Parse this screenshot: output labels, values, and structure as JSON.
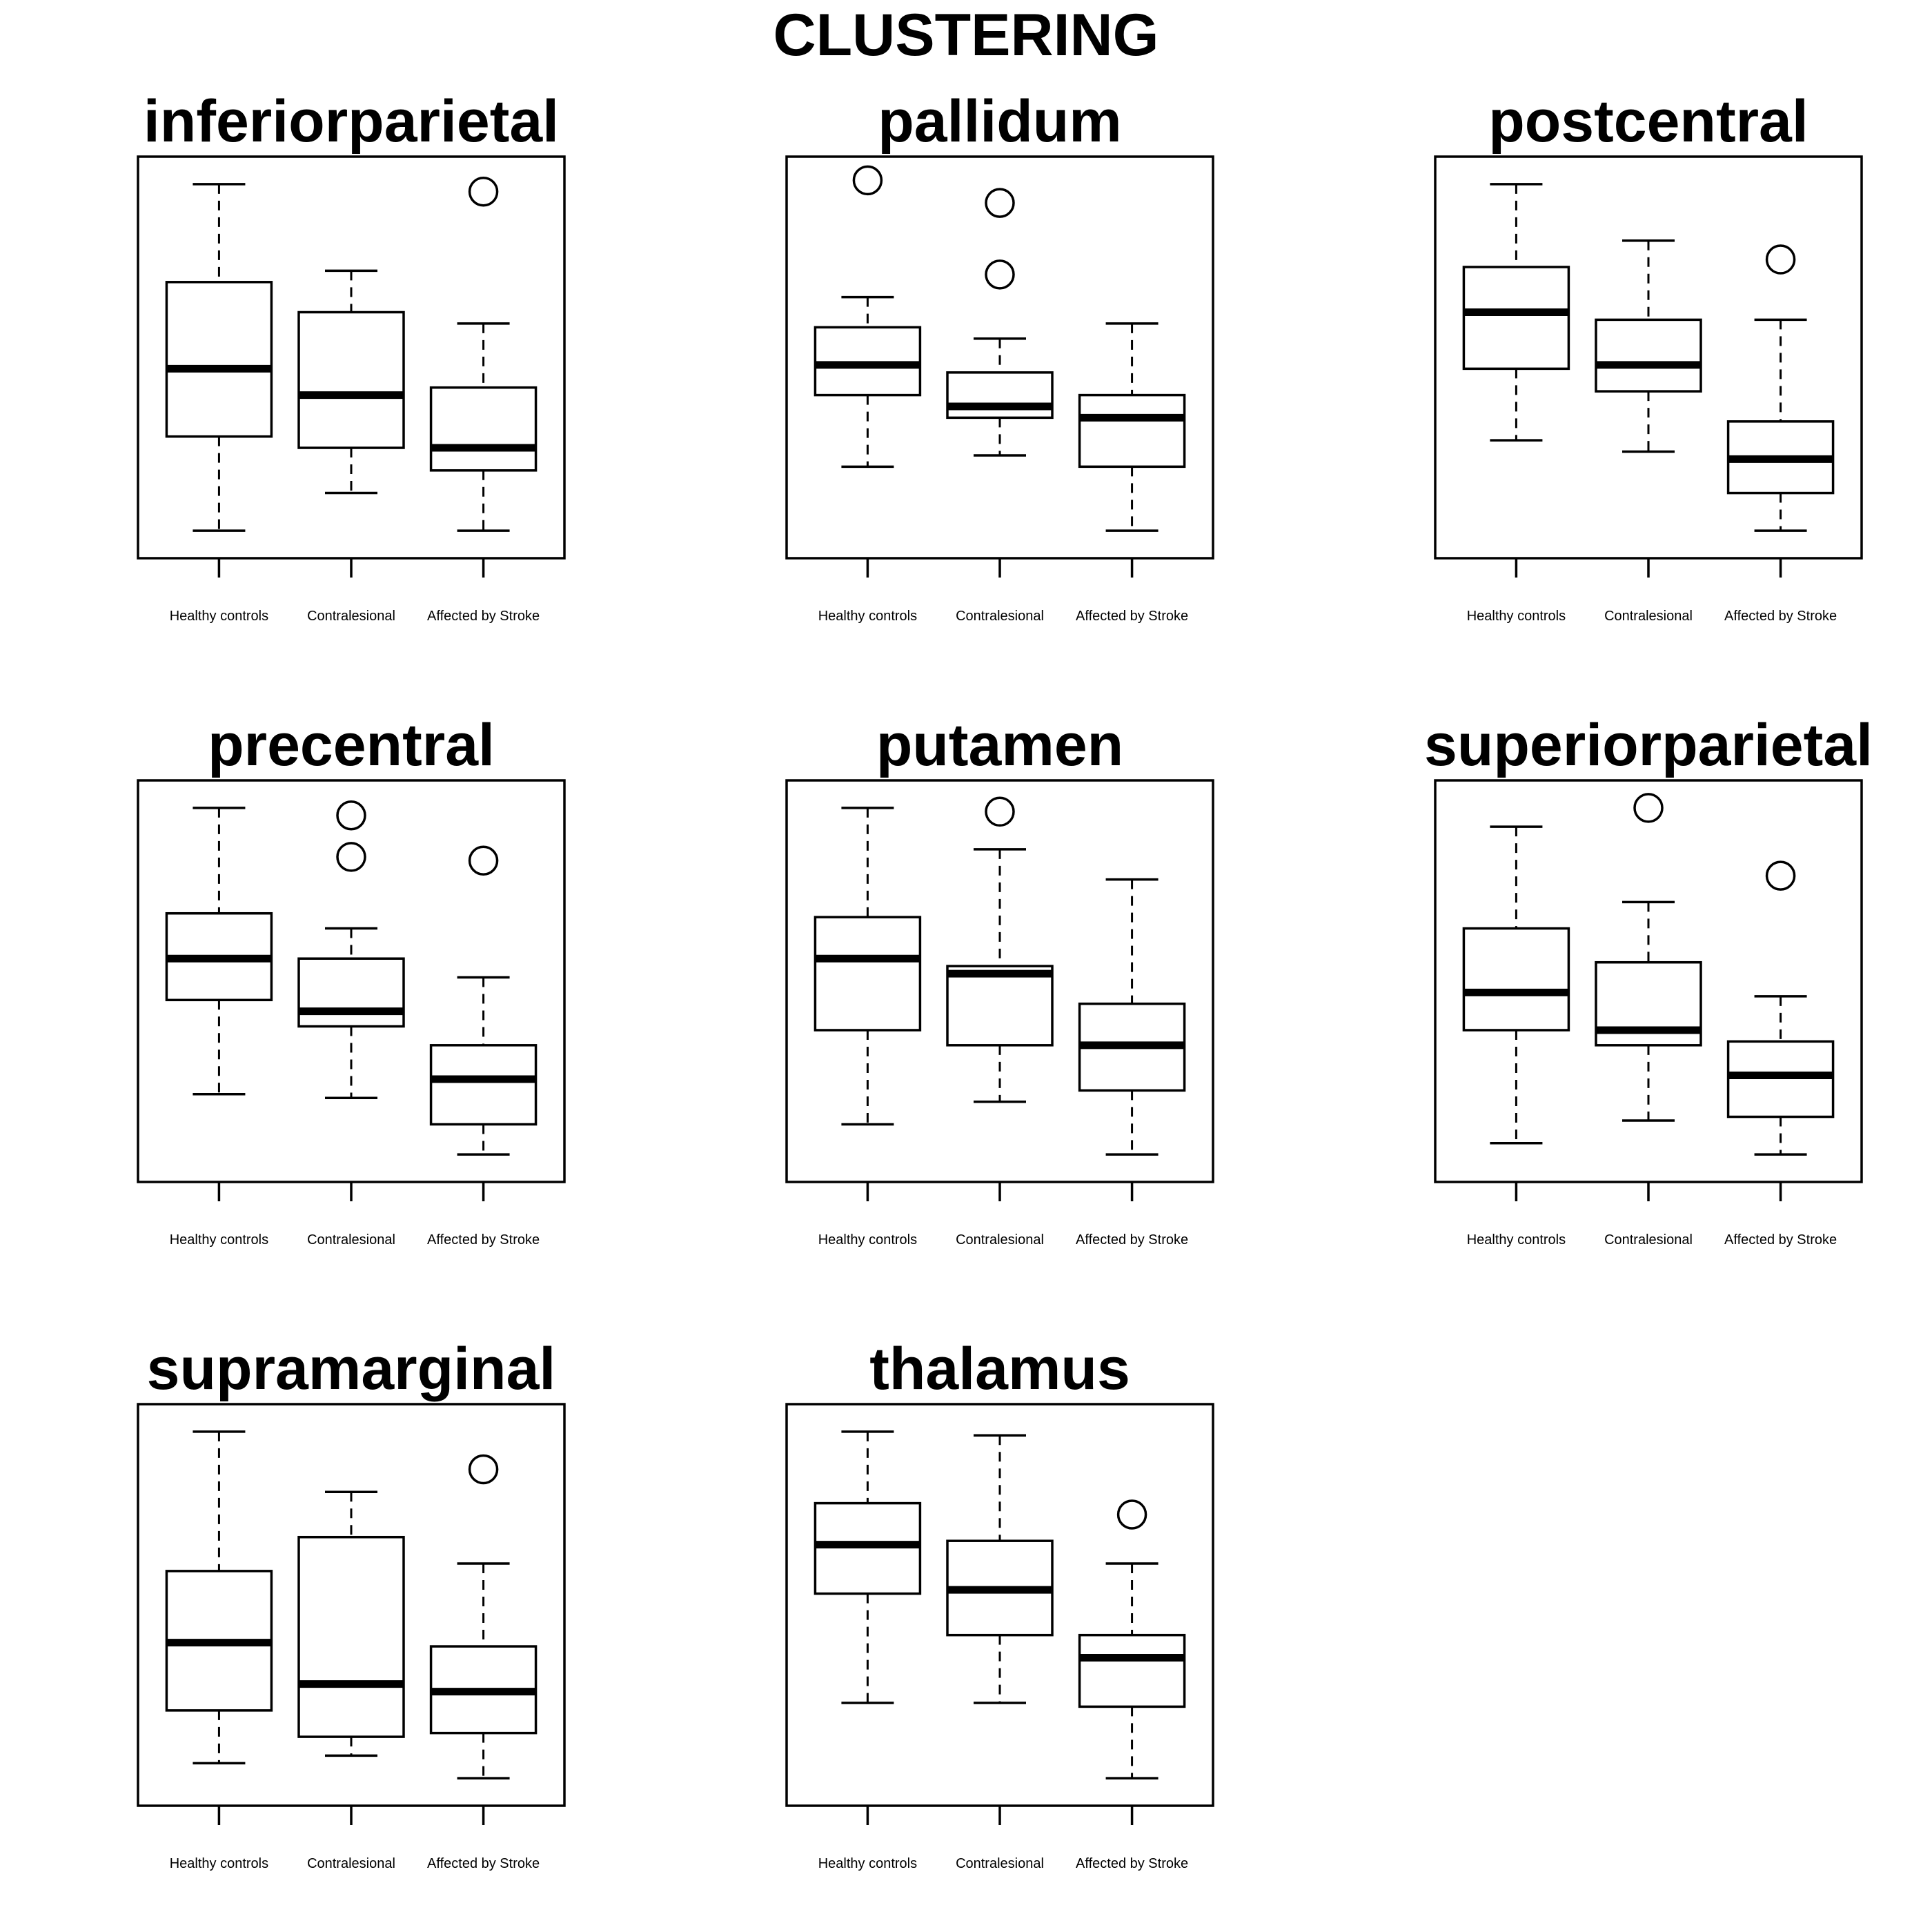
{
  "title": "CLUSTERING",
  "chart_data": [
    {
      "type": "box",
      "title": "inferiorparietal",
      "categories": [
        "Healthy controls",
        "Contralesional",
        "Affected by Stroke"
      ],
      "ylim": [
        0,
        100
      ],
      "boxes": [
        {
          "whisker_low": 4,
          "q1": 29,
          "median": 47,
          "q3": 70,
          "whisker_high": 96,
          "outliers": []
        },
        {
          "whisker_low": 14,
          "q1": 26,
          "median": 40,
          "q3": 62,
          "whisker_high": 73,
          "outliers": []
        },
        {
          "whisker_low": 4,
          "q1": 20,
          "median": 26,
          "q3": 42,
          "whisker_high": 59,
          "outliers": [
            94
          ]
        }
      ]
    },
    {
      "type": "box",
      "title": "pallidum",
      "categories": [
        "Healthy controls",
        "Contralesional",
        "Affected by Stroke"
      ],
      "ylim": [
        0,
        100
      ],
      "boxes": [
        {
          "whisker_low": 21,
          "q1": 40,
          "median": 48,
          "q3": 58,
          "whisker_high": 66,
          "outliers": [
            97
          ]
        },
        {
          "whisker_low": 24,
          "q1": 34,
          "median": 37,
          "q3": 46,
          "whisker_high": 55,
          "outliers": [
            91,
            72
          ]
        },
        {
          "whisker_low": 4,
          "q1": 21,
          "median": 34,
          "q3": 40,
          "whisker_high": 59,
          "outliers": []
        }
      ]
    },
    {
      "type": "box",
      "title": "postcentral",
      "categories": [
        "Healthy controls",
        "Contralesional",
        "Affected by Stroke"
      ],
      "ylim": [
        0,
        100
      ],
      "boxes": [
        {
          "whisker_low": 28,
          "q1": 47,
          "median": 62,
          "q3": 74,
          "whisker_high": 96,
          "outliers": []
        },
        {
          "whisker_low": 25,
          "q1": 41,
          "median": 48,
          "q3": 60,
          "whisker_high": 81,
          "outliers": []
        },
        {
          "whisker_low": 4,
          "q1": 14,
          "median": 23,
          "q3": 33,
          "whisker_high": 60,
          "outliers": [
            76
          ]
        }
      ]
    },
    {
      "type": "box",
      "title": "precentral",
      "categories": [
        "Healthy controls",
        "Contralesional",
        "Affected by Stroke"
      ],
      "ylim": [
        0,
        100
      ],
      "boxes": [
        {
          "whisker_low": 20,
          "q1": 45,
          "median": 56,
          "q3": 68,
          "whisker_high": 96,
          "outliers": []
        },
        {
          "whisker_low": 19,
          "q1": 38,
          "median": 42,
          "q3": 56,
          "whisker_high": 64,
          "outliers": [
            94,
            83
          ]
        },
        {
          "whisker_low": 4,
          "q1": 12,
          "median": 24,
          "q3": 33,
          "whisker_high": 51,
          "outliers": [
            82
          ]
        }
      ]
    },
    {
      "type": "box",
      "title": "putamen",
      "categories": [
        "Healthy controls",
        "Contralesional",
        "Affected by Stroke"
      ],
      "ylim": [
        0,
        100
      ],
      "boxes": [
        {
          "whisker_low": 12,
          "q1": 37,
          "median": 56,
          "q3": 67,
          "whisker_high": 96,
          "outliers": []
        },
        {
          "whisker_low": 18,
          "q1": 33,
          "median": 52,
          "q3": 54,
          "whisker_high": 85,
          "outliers": [
            95
          ]
        },
        {
          "whisker_low": 4,
          "q1": 21,
          "median": 33,
          "q3": 44,
          "whisker_high": 77,
          "outliers": []
        }
      ]
    },
    {
      "type": "box",
      "title": "superiorparietal",
      "categories": [
        "Healthy controls",
        "Contralesional",
        "Affected by Stroke"
      ],
      "ylim": [
        0,
        100
      ],
      "boxes": [
        {
          "whisker_low": 7,
          "q1": 37,
          "median": 47,
          "q3": 64,
          "whisker_high": 91,
          "outliers": []
        },
        {
          "whisker_low": 13,
          "q1": 33,
          "median": 37,
          "q3": 55,
          "whisker_high": 71,
          "outliers": [
            96
          ]
        },
        {
          "whisker_low": 4,
          "q1": 14,
          "median": 25,
          "q3": 34,
          "whisker_high": 46,
          "outliers": [
            78
          ]
        }
      ]
    },
    {
      "type": "box",
      "title": "supramarginal",
      "categories": [
        "Healthy controls",
        "Contralesional",
        "Affected by Stroke"
      ],
      "ylim": [
        0,
        100
      ],
      "boxes": [
        {
          "whisker_low": 8,
          "q1": 22,
          "median": 40,
          "q3": 59,
          "whisker_high": 96,
          "outliers": []
        },
        {
          "whisker_low": 10,
          "q1": 15,
          "median": 29,
          "q3": 68,
          "whisker_high": 80,
          "outliers": []
        },
        {
          "whisker_low": 4,
          "q1": 16,
          "median": 27,
          "q3": 39,
          "whisker_high": 61,
          "outliers": [
            86
          ]
        }
      ]
    },
    {
      "type": "box",
      "title": "thalamus",
      "categories": [
        "Healthy controls",
        "Contralesional",
        "Affected by Stroke"
      ],
      "ylim": [
        0,
        100
      ],
      "boxes": [
        {
          "whisker_low": 24,
          "q1": 53,
          "median": 66,
          "q3": 77,
          "whisker_high": 96,
          "outliers": []
        },
        {
          "whisker_low": 24,
          "q1": 42,
          "median": 54,
          "q3": 67,
          "whisker_high": 95,
          "outliers": []
        },
        {
          "whisker_low": 4,
          "q1": 23,
          "median": 36,
          "q3": 42,
          "whisker_high": 61,
          "outliers": [
            74
          ]
        }
      ]
    }
  ]
}
